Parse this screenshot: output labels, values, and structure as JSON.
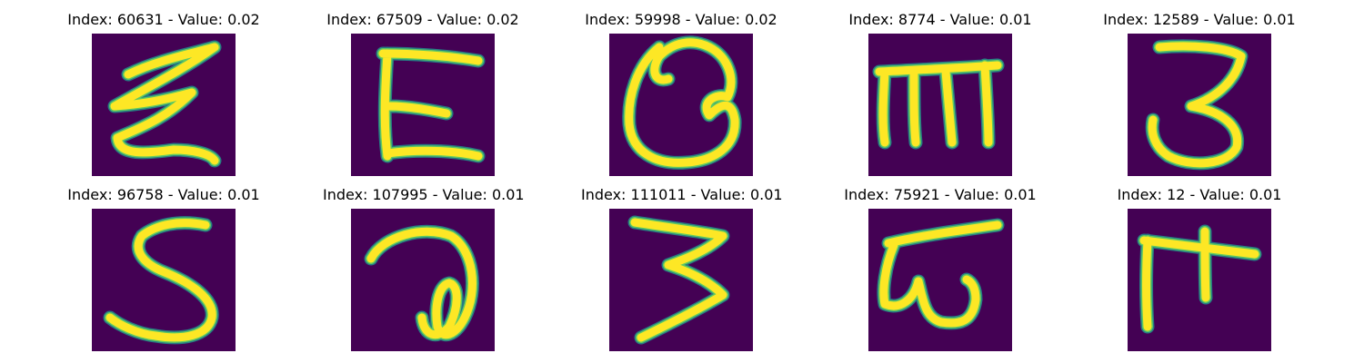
{
  "panels": [
    {
      "index": "60631",
      "value": "0.02"
    },
    {
      "index": "67509",
      "value": "0.02"
    },
    {
      "index": "59998",
      "value": "0.02"
    },
    {
      "index": "8774",
      "value": "0.01"
    },
    {
      "index": "12589",
      "value": "0.01"
    },
    {
      "index": "96758",
      "value": "0.01"
    },
    {
      "index": "107995",
      "value": "0.01"
    },
    {
      "index": "111011",
      "value": "0.01"
    },
    {
      "index": "75921",
      "value": "0.01"
    },
    {
      "index": "12",
      "value": "0.01"
    }
  ],
  "colors": {
    "background": "#440154",
    "stroke_core": "#fde725",
    "stroke_mid": "#5ec962",
    "stroke_edge": "#21918c"
  }
}
